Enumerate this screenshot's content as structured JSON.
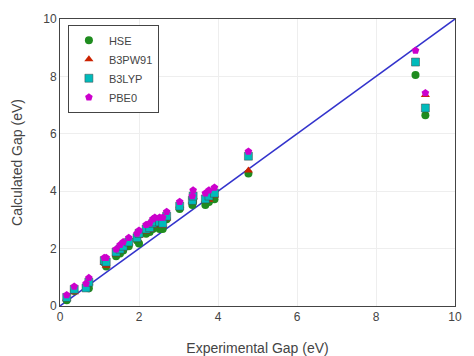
{
  "chart_data": {
    "type": "scatter",
    "xlabel": "Experimental Gap (eV)",
    "ylabel": "Calculated Gap (eV)",
    "xlim": [
      0,
      10
    ],
    "ylim": [
      0,
      10
    ],
    "xticks": [
      0,
      2,
      4,
      6,
      8,
      10
    ],
    "yticks": [
      0,
      2,
      4,
      6,
      8,
      10
    ],
    "grid": true,
    "legend": "upper left",
    "series": [
      {
        "type": "line",
        "color": "#3333cc",
        "x": [
          0,
          10
        ],
        "values": [
          0,
          10
        ]
      },
      {
        "name": "HSE",
        "color": "#1f8c1f",
        "marker": "circle",
        "x": [
          0.17,
          0.36,
          0.66,
          0.73,
          1.12,
          1.17,
          1.42,
          1.52,
          1.6,
          1.74,
          1.95,
          2.0,
          2.18,
          2.27,
          2.35,
          2.4,
          2.52,
          2.6,
          2.7,
          3.03,
          3.35,
          3.37,
          3.68,
          3.77,
          3.91,
          4.77,
          9.0,
          9.25
        ],
        "values": [
          0.2,
          0.52,
          0.68,
          0.62,
          1.52,
          1.38,
          1.73,
          1.83,
          1.93,
          2.08,
          2.28,
          2.18,
          2.52,
          2.58,
          2.68,
          2.78,
          2.68,
          2.68,
          3.02,
          3.38,
          3.52,
          3.62,
          3.52,
          3.62,
          3.72,
          4.62,
          8.05,
          6.65
        ]
      },
      {
        "name": "B3PW91",
        "color": "#cc2200",
        "marker": "triangle-up",
        "x": [
          0.17,
          0.36,
          0.73,
          1.12,
          1.17,
          1.42,
          1.52,
          1.6,
          1.74,
          1.95,
          2.0,
          2.18,
          2.27,
          2.35,
          2.4,
          2.52,
          2.6,
          2.7,
          3.03,
          3.35,
          3.37,
          3.68,
          3.77,
          3.91,
          4.77,
          9.25
        ],
        "values": [
          0.25,
          0.48,
          0.8,
          1.5,
          1.4,
          1.8,
          1.95,
          2.1,
          2.2,
          2.35,
          2.45,
          2.6,
          2.65,
          2.8,
          2.9,
          2.85,
          2.8,
          3.05,
          3.5,
          3.65,
          3.8,
          3.7,
          3.7,
          3.85,
          4.72,
          7.35
        ]
      },
      {
        "name": "B3LYP",
        "color": "#00bbbb",
        "marker": "square",
        "x": [
          0.17,
          0.36,
          0.66,
          0.73,
          1.12,
          1.17,
          1.42,
          1.52,
          1.6,
          1.74,
          1.95,
          2.0,
          2.18,
          2.27,
          2.35,
          2.4,
          2.52,
          2.6,
          2.7,
          3.03,
          3.35,
          3.37,
          3.68,
          3.77,
          3.91,
          4.77,
          9.0,
          9.25
        ],
        "values": [
          0.3,
          0.58,
          0.63,
          0.83,
          1.58,
          1.53,
          1.88,
          1.98,
          2.08,
          2.23,
          2.38,
          2.53,
          2.68,
          2.73,
          2.88,
          2.93,
          2.93,
          2.88,
          3.13,
          3.48,
          3.68,
          3.83,
          3.73,
          3.83,
          3.93,
          5.22,
          8.5,
          6.9
        ]
      },
      {
        "name": "PBE0",
        "color": "#cc00cc",
        "marker": "pentagon",
        "x": [
          0.17,
          0.36,
          0.66,
          0.73,
          1.12,
          1.17,
          1.42,
          1.52,
          1.6,
          1.74,
          1.95,
          2.0,
          2.18,
          2.27,
          2.35,
          2.4,
          2.52,
          2.6,
          2.7,
          3.03,
          3.35,
          3.37,
          3.68,
          3.77,
          3.91,
          4.77,
          9.0,
          9.25
        ],
        "values": [
          0.38,
          0.68,
          0.78,
          0.98,
          1.68,
          1.68,
          1.98,
          2.13,
          2.23,
          2.38,
          2.53,
          2.63,
          2.83,
          2.88,
          3.03,
          3.08,
          3.08,
          3.08,
          3.28,
          3.63,
          3.83,
          4.03,
          3.93,
          4.03,
          4.13,
          5.38,
          8.9,
          7.42
        ]
      }
    ]
  }
}
